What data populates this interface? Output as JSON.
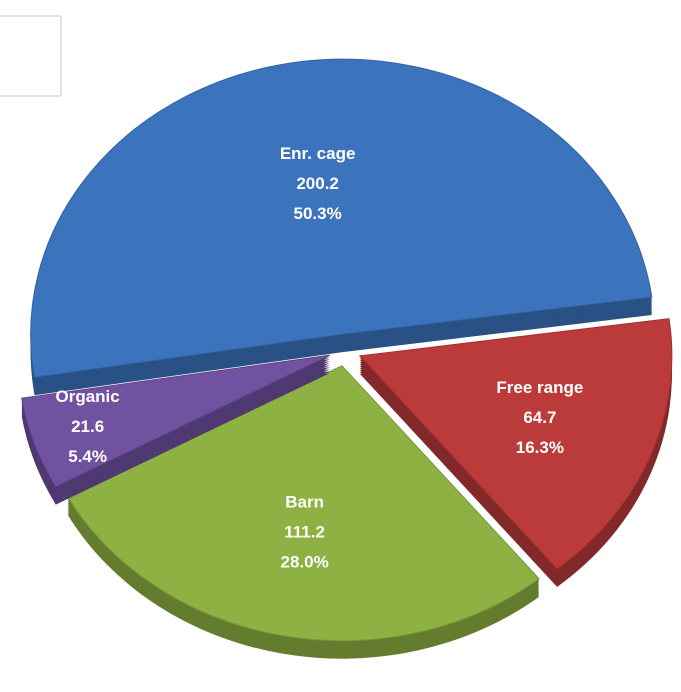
{
  "chart_data": {
    "type": "pie",
    "categories": [
      "Enr. cage",
      "Free range",
      "Barn",
      "Organic"
    ],
    "values": [
      200.2,
      64.7,
      111.2,
      21.6
    ],
    "percent_labels": [
      "50.3%",
      "16.3%",
      "28.0%",
      "5.4%"
    ],
    "colors": [
      "#3b74bc",
      "#bb3a3a",
      "#8db142",
      "#7152a1"
    ]
  }
}
